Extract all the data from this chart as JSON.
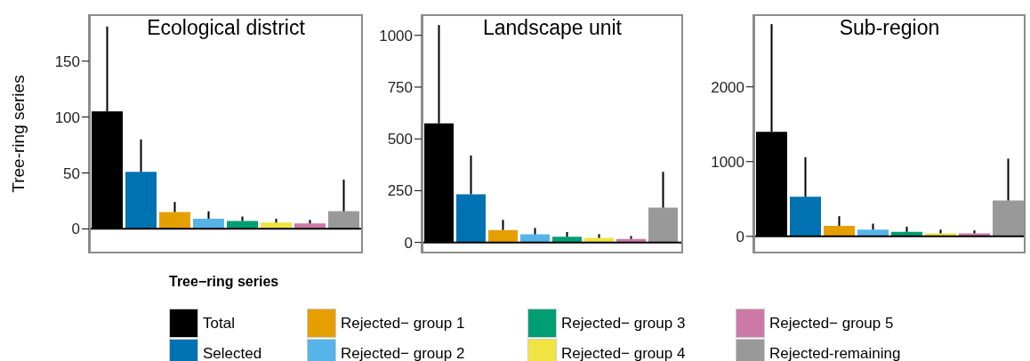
{
  "chart_data": [
    {
      "type": "bar",
      "title": "Ecological district",
      "ylabel": "Tree-ring series",
      "legend_title": "Tree−ring series",
      "legend": "bottom",
      "categories": [
        null
      ],
      "ylim": [
        -22,
        192
      ],
      "yticks": [
        0,
        50,
        100,
        150
      ],
      "grid": false,
      "ref_lines": [
        {
          "axis": "y",
          "value": 0,
          "color": "#000000"
        }
      ],
      "series": [
        {
          "name": "Total",
          "color": "#000000",
          "values": [
            105
          ],
          "errors": [
            [
              105,
              181
            ]
          ]
        },
        {
          "name": "Selected",
          "color": "#0072b2",
          "values": [
            51
          ],
          "errors": [
            [
              51,
              80
            ]
          ]
        },
        {
          "name": "Rejected− group 1",
          "color": "#e69f00",
          "values": [
            15
          ],
          "errors": [
            [
              15,
              24
            ]
          ]
        },
        {
          "name": "Rejected− group 2",
          "color": "#56b4e9",
          "values": [
            9
          ],
          "errors": [
            [
              9,
              15.7
            ]
          ]
        },
        {
          "name": "Rejected− group 3",
          "color": "#009e73",
          "values": [
            7
          ],
          "errors": [
            [
              7,
              11
            ]
          ]
        },
        {
          "name": "Rejected− group 4",
          "color": "#f0e442",
          "values": [
            5.6
          ],
          "errors": [
            [
              5.6,
              9
            ]
          ]
        },
        {
          "name": "Rejected− group 5",
          "color": "#cc79a7",
          "values": [
            4.8
          ],
          "errors": [
            [
              4.8,
              8
            ]
          ]
        },
        {
          "name": "Rejected-remaining",
          "color": "#999999",
          "values": [
            15.7
          ],
          "errors": [
            [
              15.7,
              44
            ]
          ]
        }
      ]
    },
    {
      "type": "bar",
      "title": "Landscape unit",
      "categories": [
        null
      ],
      "ylim": [
        -53,
        1102
      ],
      "yticks": [
        0,
        250,
        500,
        750,
        1000
      ],
      "grid": false,
      "ref_lines": [
        {
          "axis": "y",
          "value": 0,
          "color": "#000000"
        }
      ],
      "series": [
        {
          "color": "#000000",
          "values": [
            575
          ],
          "errors": [
            [
              575,
              1050
            ]
          ]
        },
        {
          "color": "#0072b2",
          "values": [
            233
          ],
          "errors": [
            [
              233,
              420
            ]
          ]
        },
        {
          "color": "#e69f00",
          "values": [
            60
          ],
          "errors": [
            [
              60,
              109
            ]
          ]
        },
        {
          "color": "#56b4e9",
          "values": [
            39
          ],
          "errors": [
            [
              39,
              70
            ]
          ]
        },
        {
          "color": "#009e73",
          "values": [
            27
          ],
          "errors": [
            [
              27,
              50
            ]
          ]
        },
        {
          "color": "#f0e442",
          "values": [
            22
          ],
          "errors": [
            [
              22,
              40
            ]
          ]
        },
        {
          "color": "#cc79a7",
          "values": [
            17
          ],
          "errors": [
            [
              17,
              31
            ]
          ]
        },
        {
          "color": "#999999",
          "values": [
            168
          ],
          "errors": [
            [
              168,
              341
            ]
          ]
        }
      ]
    },
    {
      "type": "bar",
      "title": "Sub-region",
      "categories": [
        null
      ],
      "ylim": [
        -228,
        2972
      ],
      "yticks": [
        0,
        1000,
        2000
      ],
      "grid": false,
      "ref_lines": [
        {
          "axis": "y",
          "value": 0,
          "color": "#000000"
        }
      ],
      "series": [
        {
          "color": "#000000",
          "values": [
            1400
          ],
          "errors": [
            [
              1400,
              2840
            ]
          ]
        },
        {
          "color": "#0072b2",
          "values": [
            530
          ],
          "errors": [
            [
              530,
              1060
            ]
          ]
        },
        {
          "color": "#e69f00",
          "values": [
            140
          ],
          "errors": [
            [
              140,
              270
            ]
          ]
        },
        {
          "color": "#56b4e9",
          "values": [
            90
          ],
          "errors": [
            [
              90,
              170
            ]
          ]
        },
        {
          "color": "#009e73",
          "values": [
            60
          ],
          "errors": [
            [
              60,
              130
            ]
          ]
        },
        {
          "color": "#f0e442",
          "values": [
            40
          ],
          "errors": [
            [
              40,
              90
            ]
          ]
        },
        {
          "color": "#cc79a7",
          "values": [
            40
          ],
          "errors": [
            [
              40,
              80
            ]
          ]
        },
        {
          "color": "#999999",
          "values": [
            480
          ],
          "errors": [
            [
              480,
              1040
            ]
          ]
        }
      ]
    }
  ]
}
